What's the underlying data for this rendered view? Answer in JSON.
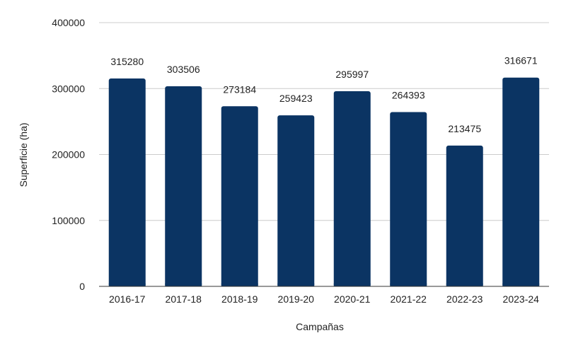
{
  "colors": {
    "bar": "#0b3463",
    "grid": "#cccccc",
    "axis": "#333333",
    "text": "#222222"
  },
  "chart_data": {
    "type": "bar",
    "title": "",
    "xlabel": "Campañas",
    "ylabel": "Superficie (ha)",
    "categories": [
      "2016-17",
      "2017-18",
      "2018-19",
      "2019-20",
      "2020-21",
      "2021-22",
      "2022-23",
      "2023-24"
    ],
    "values": [
      315280,
      303506,
      273184,
      259423,
      295997,
      264393,
      213475,
      316671
    ],
    "ylim": [
      0,
      400000
    ],
    "yticks": [
      0,
      100000,
      200000,
      300000,
      400000
    ],
    "grid": true,
    "data_labels": true
  }
}
